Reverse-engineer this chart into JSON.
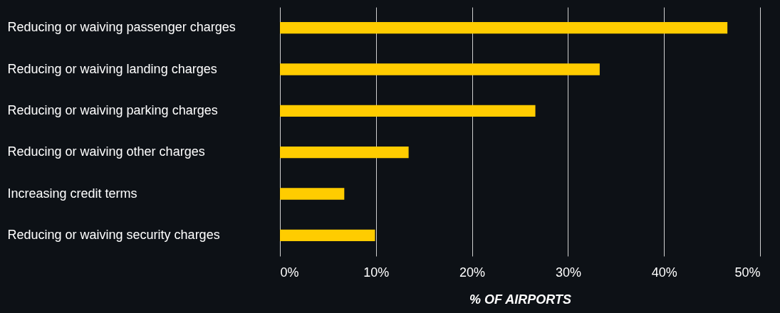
{
  "chart_data": {
    "type": "bar",
    "orientation": "horizontal",
    "xlabel": "% OF AIRPORTS",
    "categories": [
      "Reducing or waiving passenger charges",
      "Reducing or waiving landing charges",
      "Reducing or waiving parking charges",
      "Reducing or waiving other charges",
      "Increasing credit terms",
      "Reducing or waiving security charges"
    ],
    "values": [
      46.6,
      33.3,
      26.6,
      13.4,
      6.7,
      9.9
    ],
    "color": "#ffcc00",
    "xlim": [
      0,
      50
    ],
    "xticks": [
      {
        "value": 0,
        "label": "0%"
      },
      {
        "value": 10,
        "label": "10%"
      },
      {
        "value": 20,
        "label": "20%"
      },
      {
        "value": 30,
        "label": "30%"
      },
      {
        "value": 40,
        "label": "40%"
      },
      {
        "value": 50,
        "label": "50%"
      }
    ],
    "grid": "x"
  }
}
